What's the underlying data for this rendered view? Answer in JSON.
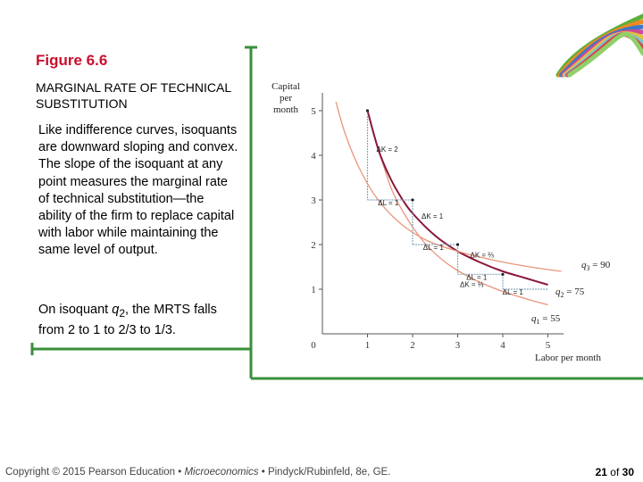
{
  "slide": {
    "figure_title": "Figure 6.6",
    "subtitle": "MARGINAL RATE OF TECHNICAL SUBSTITUTION",
    "paragraph1": "Like indifference curves, isoquants are downward sloping and convex. The slope of the isoquant at any point measures the marginal rate of technical substitution—the ability of the firm to replace capital with labor while maintaining the same level of output.",
    "paragraph2_pre": "On isoquant ",
    "paragraph2_var": "q",
    "paragraph2_sub": "2",
    "paragraph2_post": ", the MRTS falls from 2 to 1 to 2/3 to 1/3."
  },
  "footer": {
    "copyright": "Copyright © 2015 Pearson Education • ",
    "book": "Microeconomics",
    "authors": " • Pindyck/Rubinfeld, 8e, GE.",
    "page_current": "21",
    "page_of": " of ",
    "page_total": "30"
  },
  "colors": {
    "title": "#c8102e",
    "q2_curve": "#8b1538",
    "outer_curves": "#e8957a",
    "steps": "#8aa9bf",
    "frame": "#3a8f3a"
  },
  "chart_data": {
    "type": "line",
    "ylabel": [
      "Capital",
      "per",
      "month"
    ],
    "xlabel": "Labor per month",
    "origin_label": "0",
    "xlim": [
      0,
      5.3
    ],
    "ylim": [
      0,
      5.2
    ],
    "x_ticks": [
      "1",
      "2",
      "3",
      "4",
      "5"
    ],
    "y_ticks": [
      "1",
      "2",
      "3",
      "4",
      "5"
    ],
    "series": [
      {
        "name": "q1",
        "label_var": "q",
        "label_sub": "1",
        "label_value": " = 55",
        "x": [
          1.3,
          1.55,
          1.9,
          2.3,
          2.8,
          3.4,
          4.0,
          4.6,
          5.0
        ],
        "y": [
          3.95,
          3.2,
          2.55,
          2.0,
          1.55,
          1.2,
          0.95,
          0.76,
          0.65
        ]
      },
      {
        "name": "q2",
        "label_var": "q",
        "label_sub": "2",
        "label_value": " = 75",
        "x": [
          1,
          1.25,
          1.5,
          1.75,
          2,
          2.5,
          3,
          3.5,
          4,
          4.5,
          5
        ],
        "y": [
          5,
          4.1,
          3.5,
          3.05,
          2.7,
          2.2,
          1.85,
          1.6,
          1.4,
          1.25,
          1.1
        ]
      },
      {
        "name": "q3",
        "label_var": "q",
        "label_sub": "3",
        "label_value": " = 90",
        "x": [
          0.3,
          0.5,
          0.8,
          1.2,
          1.7,
          2.3,
          3.0,
          3.8,
          4.6,
          5.3
        ],
        "y": [
          5.2,
          4.5,
          3.75,
          3.05,
          2.5,
          2.1,
          1.85,
          1.65,
          1.5,
          1.4
        ]
      }
    ],
    "mrts_steps": [
      {
        "dL": 1,
        "dK": 2,
        "dK_text": "ΔK = 2",
        "dL_text": "ΔL = 1"
      },
      {
        "dL": 1,
        "dK": 1,
        "dK_text": "ΔK = 1",
        "dL_text": "ΔL = 1"
      },
      {
        "dL": 1,
        "dK": 0.6667,
        "dK_text": "ΔK = ⅔",
        "dL_text": "ΔL = 1"
      },
      {
        "dL": 1,
        "dK": 0.3333,
        "dK_text": "ΔK = ⅓",
        "dL_text": "ΔL = 1"
      }
    ]
  }
}
